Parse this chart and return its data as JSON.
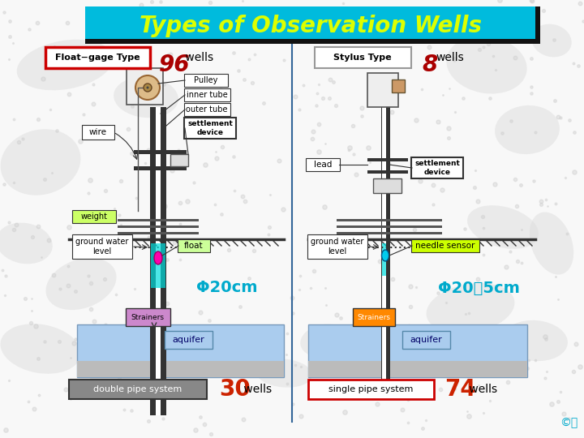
{
  "title": "Types of Observation Wells",
  "title_bg": "#00BBDD",
  "title_fg": "#DDFF00",
  "title_border": "#111111",
  "bg_color": "#FFFFFF",
  "world_dot_color": "#CCCCCC",
  "divider_color": "#336699",
  "left_type_label": "Float−gage Type",
  "left_type_bg": "#FFFFFF",
  "left_type_border": "#CC0000",
  "left_count": "96",
  "left_count_color": "#AA0000",
  "left_wells_text": " wells",
  "left_wells_color": "#000000",
  "right_type_label": "Stylus Type",
  "right_type_bg": "#FFFFFF",
  "right_type_border": "#999999",
  "right_count": "8",
  "right_count_color": "#AA0000",
  "right_wells_text": "wells",
  "right_wells_color": "#000000",
  "phi_left": "Φ20cm",
  "phi_left_color": "#00AACC",
  "phi_right": "Φ20～5cm",
  "phi_right_color": "#00AACC",
  "left_bottom_label": "double pipe system",
  "left_bottom_bg": "#888888",
  "left_bottom_fg": "#FFFFFF",
  "left_bottom_count": "30",
  "left_bottom_count_color": "#CC2200",
  "left_bottom_wells": " wells",
  "left_bottom_wells_color": "#000000",
  "right_bottom_label": "single pipe system",
  "right_bottom_bg": "#FFFFFF",
  "right_bottom_border": "#CC0000",
  "right_bottom_count": "74",
  "right_bottom_count_color": "#CC2200",
  "right_bottom_wells": " wells",
  "right_bottom_wells_color": "#000000",
  "pipe_dark": "#333333",
  "pipe_light": "#FFFFFF",
  "pipe_outer": "#888888",
  "aquifer_fill": "#AACCEE",
  "aquifer_bottom": "#BBBBBB",
  "strainer_left_bg": "#CC88CC",
  "strainer_right_bg": "#FF8800",
  "water_fill": "#00DDDD",
  "float_color": "#FF00AA",
  "needle_color": "#00CCEE",
  "copyright": "©明",
  "copyright_color": "#00AACC"
}
